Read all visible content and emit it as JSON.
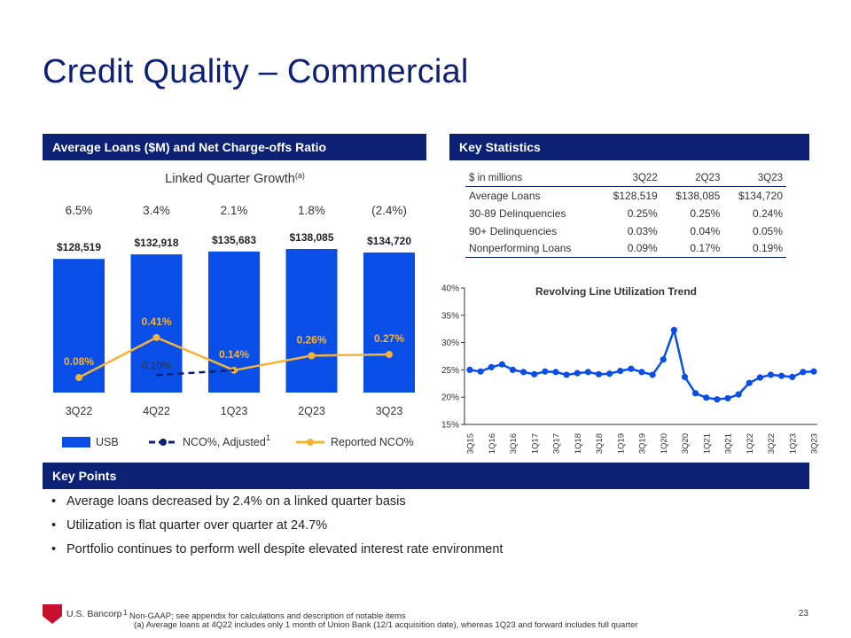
{
  "page": {
    "title": "Credit Quality – Commercial",
    "page_number": "23"
  },
  "left_panel": {
    "header": "Average Loans ($M) and Net Charge-offs Ratio",
    "growth_title": "Linked Quarter Growth",
    "growth_superscript": "(a)"
  },
  "right_panel": {
    "header": "Key Statistics"
  },
  "key_points": {
    "header": "Key Points",
    "items": [
      "Average loans decreased by 2.4% on a linked quarter basis",
      "Utilization is flat quarter over quarter at 24.7%",
      "Portfolio continues to perform well despite elevated interest rate environment"
    ]
  },
  "stats_table": {
    "columns": [
      "$ in millions",
      "3Q22",
      "2Q23",
      "3Q23"
    ],
    "rows": [
      [
        "Average Loans",
        "$128,519",
        "$138,085",
        "$134,720"
      ],
      [
        "30-89 Delinquencies",
        "0.25%",
        "0.25%",
        "0.24%"
      ],
      [
        "90+ Delinquencies",
        "0.03%",
        "0.04%",
        "0.05%"
      ],
      [
        "Nonperforming Loans",
        "0.09%",
        "0.17%",
        "0.19%"
      ]
    ]
  },
  "chart_data": [
    {
      "type": "bar",
      "title": "Average Loans ($M) and Net Charge-offs Ratio",
      "categories": [
        "3Q22",
        "4Q22",
        "1Q23",
        "2Q23",
        "3Q23"
      ],
      "growth_labels": [
        "6.5%",
        "3.4%",
        "2.1%",
        "1.8%",
        "(2.4%)"
      ],
      "series": [
        {
          "name": "USB",
          "type": "bar",
          "color": "#0a4ee8",
          "values": [
            128519,
            132918,
            135683,
            138085,
            134720
          ],
          "labels": [
            "$128,519",
            "$132,918",
            "$135,683",
            "$138,085",
            "$134,720"
          ]
        },
        {
          "name": "NCO%, Adjusted",
          "superscript": "1",
          "type": "line",
          "style": "dashed",
          "color": "#0c2074",
          "values": [
            null,
            0.1,
            0.14,
            null,
            null
          ],
          "labels": [
            "",
            "0.10%",
            "",
            "",
            ""
          ]
        },
        {
          "name": "Reported NCO%",
          "type": "line",
          "color": "#f5b335",
          "values": [
            0.08,
            0.41,
            0.14,
            0.26,
            0.27
          ],
          "labels": [
            "0.08%",
            "0.41%",
            "0.14%",
            "0.26%",
            "0.27%"
          ]
        }
      ]
    },
    {
      "type": "line",
      "title": "Revolving Line Utilization Trend",
      "color": "#0a4ee8",
      "ylim": [
        15,
        40
      ],
      "yticks": [
        15,
        20,
        25,
        30,
        35,
        40
      ],
      "ytick_labels": [
        "15%",
        "20%",
        "25%",
        "30%",
        "35%",
        "40%"
      ],
      "x": [
        "3Q15",
        "4Q15",
        "1Q16",
        "2Q16",
        "3Q16",
        "4Q16",
        "1Q17",
        "2Q17",
        "3Q17",
        "4Q17",
        "1Q18",
        "2Q18",
        "3Q18",
        "4Q18",
        "1Q19",
        "2Q19",
        "3Q19",
        "4Q19",
        "1Q20",
        "2Q20",
        "3Q20",
        "4Q20",
        "1Q21",
        "2Q21",
        "3Q21",
        "4Q21",
        "1Q22",
        "2Q22",
        "3Q22",
        "4Q22",
        "1Q23",
        "2Q23",
        "3Q23"
      ],
      "xtick_labels": [
        "3Q15",
        "1Q16",
        "3Q16",
        "1Q17",
        "3Q17",
        "1Q18",
        "3Q18",
        "1Q19",
        "3Q19",
        "1Q20",
        "3Q20",
        "1Q21",
        "3Q21",
        "1Q22",
        "3Q22",
        "1Q23",
        "3Q23"
      ],
      "values": [
        25.0,
        24.7,
        25.5,
        26.0,
        25.0,
        24.6,
        24.2,
        24.7,
        24.6,
        24.1,
        24.4,
        24.6,
        24.2,
        24.3,
        24.8,
        25.2,
        24.6,
        24.1,
        26.9,
        32.3,
        23.7,
        20.7,
        19.9,
        19.6,
        19.8,
        20.5,
        22.6,
        23.6,
        24.1,
        23.9,
        23.7,
        24.6,
        24.7
      ]
    }
  ],
  "logo": {
    "text": "U.S. Bancorp"
  },
  "footnotes": {
    "fn1_mark": "1",
    "fn1": "Non-GAAP; see appendix for calculations and description of notable items",
    "fn2": "(a) Average loans at 4Q22 includes only 1 month of Union Bank (12/1 acquisition date), whereas 1Q23 and forward includes full quarter"
  }
}
